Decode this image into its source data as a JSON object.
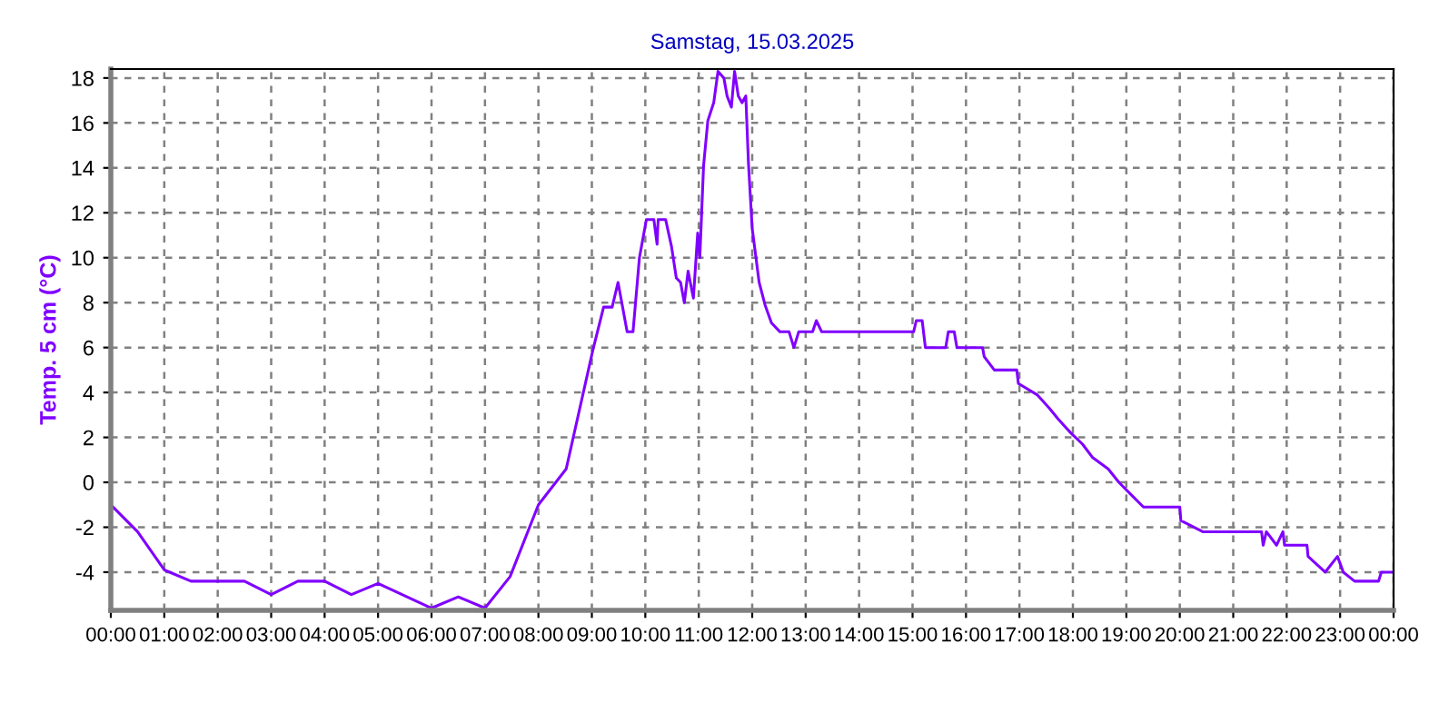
{
  "chart_data": {
    "type": "line",
    "title": "Samstag, 15.03.2025",
    "ylabel": "Temp. 5 cm (°C)",
    "x": [
      0,
      0.5,
      1,
      1.5,
      2.5,
      3,
      3.5,
      4,
      4.5,
      5,
      6,
      6.5,
      7,
      7.47,
      8,
      8.52,
      9.02,
      9.22,
      9.38,
      9.49,
      9.66,
      9.77,
      9.89,
      10.02,
      10.16,
      10.22,
      10.24,
      10.38,
      10.49,
      10.58,
      10.66,
      10.73,
      10.8,
      10.9,
      10.98,
      11.02,
      11.09,
      11.17,
      11.28,
      11.36,
      11.47,
      11.53,
      11.61,
      11.67,
      11.74,
      11.81,
      11.88,
      11.93,
      12.0,
      12.13,
      12.24,
      12.36,
      12.52,
      12.69,
      12.78,
      12.87,
      13.13,
      13.2,
      13.3,
      15.02,
      15.07,
      15.18,
      15.24,
      15.62,
      15.67,
      15.78,
      15.83,
      16.0,
      16.31,
      16.34,
      16.53,
      16.95,
      16.98,
      17.33,
      17.56,
      17.73,
      17.96,
      18.18,
      18.37,
      18.66,
      18.86,
      19.11,
      19.32,
      20.0,
      20.02,
      20.43,
      21.53,
      21.56,
      21.62,
      21.81,
      21.93,
      21.96,
      22.38,
      22.4,
      22.72,
      22.95,
      23.06,
      23.27,
      23.72,
      23.77,
      24.0
    ],
    "series": [
      {
        "color": "#8000ff",
        "values": [
          -1.0,
          -2.2,
          -3.9,
          -4.4,
          -4.4,
          -5.0,
          -4.4,
          -4.4,
          -5.0,
          -4.5,
          -5.6,
          -5.1,
          -5.6,
          -4.2,
          -1.0,
          0.6,
          5.9,
          7.8,
          7.8,
          8.9,
          6.7,
          6.7,
          10.0,
          11.7,
          11.7,
          10.6,
          11.7,
          11.7,
          10.5,
          9.1,
          8.9,
          8.0,
          9.4,
          8.2,
          11.1,
          10.0,
          14.1,
          16.1,
          16.9,
          18.3,
          18.0,
          17.2,
          16.7,
          18.3,
          17.2,
          16.9,
          17.2,
          14.2,
          11.3,
          8.9,
          7.9,
          7.1,
          6.7,
          6.7,
          6.0,
          6.7,
          6.7,
          7.2,
          6.7,
          6.7,
          7.2,
          7.2,
          6.0,
          6.0,
          6.7,
          6.7,
          6.0,
          6.0,
          6.0,
          5.6,
          5.0,
          5.0,
          4.4,
          3.9,
          3.3,
          2.8,
          2.2,
          1.7,
          1.1,
          0.6,
          0.0,
          -0.6,
          -1.1,
          -1.1,
          -1.7,
          -2.2,
          -2.2,
          -2.8,
          -2.2,
          -2.8,
          -2.2,
          -2.8,
          -2.8,
          -3.3,
          -4.0,
          -3.3,
          -4.0,
          -4.4,
          -4.4,
          -4.0,
          -4.0
        ]
      }
    ],
    "xlim": [
      0,
      24
    ],
    "ylim": [
      -5.7,
      18.4
    ],
    "xticks": [
      {
        "value": 0,
        "label": "00:00"
      },
      {
        "value": 1,
        "label": "01:00"
      },
      {
        "value": 2,
        "label": "02:00"
      },
      {
        "value": 3,
        "label": "03:00"
      },
      {
        "value": 4,
        "label": "04:00"
      },
      {
        "value": 5,
        "label": "05:00"
      },
      {
        "value": 6,
        "label": "06:00"
      },
      {
        "value": 7,
        "label": "07:00"
      },
      {
        "value": 8,
        "label": "08:00"
      },
      {
        "value": 9,
        "label": "09:00"
      },
      {
        "value": 10,
        "label": "10:00"
      },
      {
        "value": 11,
        "label": "11:00"
      },
      {
        "value": 12,
        "label": "12:00"
      },
      {
        "value": 13,
        "label": "13:00"
      },
      {
        "value": 14,
        "label": "14:00"
      },
      {
        "value": 15,
        "label": "15:00"
      },
      {
        "value": 16,
        "label": "16:00"
      },
      {
        "value": 17,
        "label": "17:00"
      },
      {
        "value": 18,
        "label": "18:00"
      },
      {
        "value": 19,
        "label": "19:00"
      },
      {
        "value": 20,
        "label": "20:00"
      },
      {
        "value": 21,
        "label": "21:00"
      },
      {
        "value": 22,
        "label": "22:00"
      },
      {
        "value": 23,
        "label": "23:00"
      },
      {
        "value": 24,
        "label": "00:00"
      }
    ],
    "yticks": [
      -4,
      -2,
      0,
      2,
      4,
      6,
      8,
      10,
      12,
      14,
      16,
      18
    ],
    "grid": true,
    "line_style": "solid",
    "marker": "none"
  }
}
